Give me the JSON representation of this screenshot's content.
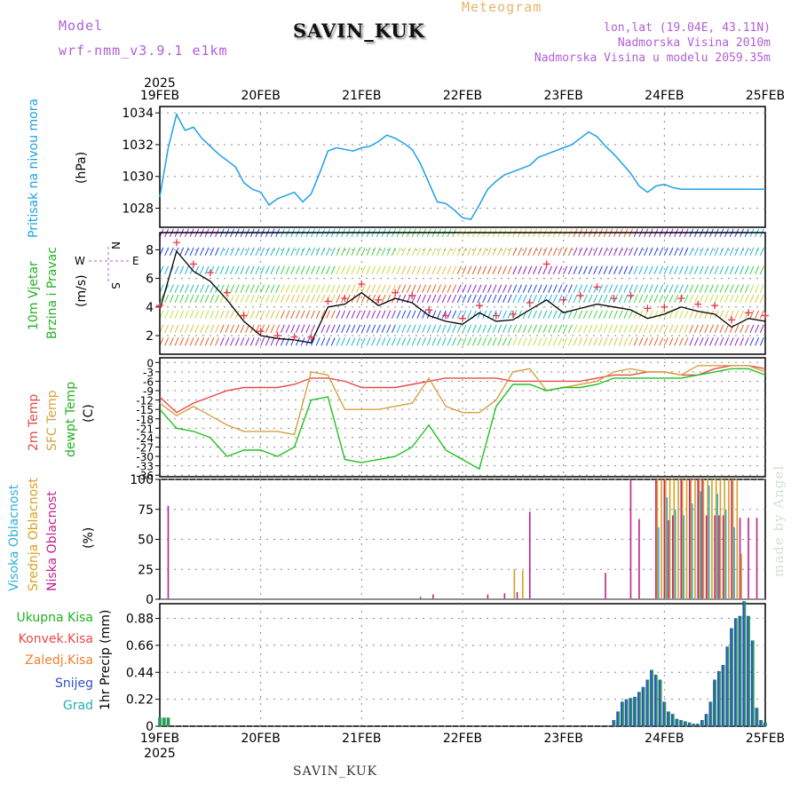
{
  "header": {
    "model_label": "Model",
    "model_name": "wrf-nmm_v3.9.1  e1km",
    "station": "SAVIN_KUK",
    "meteogram": "Meteogram",
    "lonlat": "lon,lat (19.04E, 43.11N)",
    "altitude": "Nadmorska Visina 2010m",
    "model_altitude": "Nadmorska Visina u modelu 2059.35m"
  },
  "footer": {
    "station": "SAVIN_KUK",
    "credit": "made by Angel"
  },
  "colors": {
    "pressure": "#1ea0e6",
    "wind_black": "#000000",
    "wind_red": "#e8364a",
    "temp2m": "#e84848",
    "sfc_temp": "#d8a040",
    "dewpt": "#22c022",
    "high_cloud": "#2fb0d8",
    "mid_cloud": "#d8a020",
    "low_cloud": "#c0208a",
    "precip_total": "#2a9a5a",
    "snow": "#3050c8",
    "grad": "#20b0b0"
  },
  "axis": {
    "year": "2025",
    "dates": [
      "19FEB",
      "20FEB",
      "21FEB",
      "22FEB",
      "23FEB",
      "24FEB",
      "25FEB"
    ]
  },
  "chart_data": [
    {
      "type": "line",
      "panel": "pressure",
      "ylabel_1": "Pritisak na nivou mora",
      "unit": "(hPa)",
      "ylim": [
        1026.8,
        1034.4
      ],
      "yticks": [
        "1028",
        "1030",
        "1032",
        "1034"
      ],
      "x_hours_from_19FEB": [
        0,
        2,
        4,
        6,
        8,
        10,
        12,
        14,
        16,
        18,
        20,
        22,
        24,
        26,
        28,
        30,
        32,
        34,
        36,
        38,
        40,
        42,
        44,
        46,
        48,
        50,
        52,
        54,
        56,
        58,
        60,
        62,
        64,
        66,
        68,
        70,
        72,
        74,
        76,
        78,
        80,
        82,
        84,
        86,
        88,
        90,
        92,
        94,
        96,
        98,
        100,
        102,
        104,
        106,
        108,
        110,
        112,
        114,
        116,
        118,
        120,
        122,
        124,
        126,
        128,
        130,
        132,
        134,
        136,
        138,
        140,
        142,
        144
      ],
      "series": [
        {
          "values": [
            1028.7,
            1031.8,
            1033.9,
            1032.9,
            1033.1,
            1032.4,
            1031.9,
            1031.4,
            1031.0,
            1030.6,
            1029.6,
            1029.2,
            1029.0,
            1028.2,
            1028.6,
            1028.8,
            1029.0,
            1028.4,
            1028.9,
            1030.2,
            1031.6,
            1031.8,
            1031.7,
            1031.6,
            1031.8,
            1031.9,
            1032.2,
            1032.6,
            1032.4,
            1032.1,
            1031.7,
            1030.8,
            1029.6,
            1028.4,
            1028.3,
            1027.9,
            1027.4,
            1027.3,
            1028.2,
            1029.2,
            1029.7,
            1030.1,
            1030.3,
            1030.5,
            1030.7,
            1031.2,
            1031.4,
            1031.6,
            1031.8,
            1032.0,
            1032.4,
            1032.8,
            1032.5,
            1031.9,
            1031.4,
            1030.8,
            1030.2,
            1029.4,
            1029.0,
            1029.4,
            1029.5,
            1029.3,
            1029.2,
            1029.2,
            1029.2,
            1029.2,
            1029.2,
            1029.2,
            1029.2,
            1029.2,
            1029.2,
            1029.2,
            1029.2
          ]
        }
      ]
    },
    {
      "type": "line",
      "panel": "wind",
      "ylabel_1": "10m Vjetar",
      "ylabel_2": "Brzina i Pravac",
      "unit": "(m/s)",
      "compass": {
        "north": "N",
        "west": "W",
        "east": "E",
        "south": "S"
      },
      "ylim": [
        0.7,
        9.2
      ],
      "yticks": [
        "2",
        "4",
        "6",
        "8"
      ],
      "x_hours_from_19FEB": [
        0,
        4,
        8,
        12,
        16,
        20,
        24,
        28,
        32,
        36,
        40,
        44,
        48,
        52,
        56,
        60,
        64,
        68,
        72,
        76,
        80,
        84,
        88,
        92,
        96,
        100,
        104,
        108,
        112,
        116,
        120,
        124,
        128,
        132,
        136,
        140,
        144
      ],
      "series": [
        {
          "name": "speed",
          "values": [
            3.8,
            7.9,
            6.5,
            5.8,
            4.5,
            3.0,
            2.0,
            1.8,
            1.7,
            1.5,
            4.0,
            4.2,
            5.0,
            4.1,
            4.6,
            4.3,
            3.4,
            3.0,
            2.8,
            3.6,
            3.0,
            3.1,
            3.8,
            4.5,
            3.6,
            3.9,
            4.2,
            4.0,
            3.8,
            3.2,
            3.5,
            4.0,
            3.7,
            3.5,
            2.6,
            3.2,
            3.0
          ]
        },
        {
          "name": "gust",
          "values": [
            4.1,
            8.5,
            7.0,
            6.4,
            5.0,
            3.4,
            2.3,
            2.0,
            1.9,
            1.9,
            4.4,
            4.6,
            5.6,
            4.5,
            5.0,
            4.8,
            3.8,
            3.4,
            3.2,
            4.1,
            3.4,
            3.5,
            4.3,
            7.0,
            4.5,
            4.8,
            5.4,
            4.6,
            4.8,
            3.9,
            4.0,
            4.6,
            4.2,
            4.1,
            3.1,
            3.6,
            3.4
          ]
        }
      ]
    },
    {
      "type": "line",
      "panel": "temperature",
      "ylabel_1": "2m Temp",
      "ylabel_2": "SFC Temp",
      "ylabel_3": "dewpt Temp",
      "unit": "(C)",
      "ylim": [
        -36.5,
        1.5
      ],
      "yticks": [
        "0",
        "-3",
        "-6",
        "-9",
        "-12",
        "-15",
        "-18",
        "-21",
        "-24",
        "-27",
        "-30",
        "-33",
        "-36"
      ],
      "x_hours_from_19FEB": [
        0,
        4,
        8,
        12,
        16,
        20,
        24,
        28,
        32,
        36,
        40,
        44,
        48,
        52,
        56,
        60,
        64,
        68,
        72,
        76,
        80,
        84,
        88,
        92,
        96,
        100,
        104,
        108,
        112,
        116,
        120,
        124,
        128,
        132,
        136,
        140,
        144
      ],
      "series": [
        {
          "name": "2m Temp",
          "values": [
            -11,
            -16,
            -13,
            -11,
            -9,
            -8,
            -8,
            -8,
            -7,
            -5,
            -5,
            -6,
            -8,
            -8,
            -8,
            -7,
            -6,
            -5,
            -5,
            -5,
            -5,
            -6,
            -6,
            -6,
            -6,
            -6,
            -5,
            -4,
            -4,
            -3,
            -3,
            -4,
            -4,
            -2,
            -1,
            -1,
            -2
          ]
        },
        {
          "name": "SFC Temp",
          "values": [
            -13,
            -17,
            -14,
            -17,
            -20,
            -22,
            -22,
            -22,
            -23,
            -3,
            -4,
            -15,
            -15,
            -15,
            -14,
            -13,
            -5,
            -14,
            -16,
            -16,
            -12,
            -3,
            -2,
            -9,
            -8,
            -7,
            -6,
            -3,
            -2,
            -3,
            -3,
            -4,
            -1,
            -1,
            -1,
            -1,
            -3
          ]
        },
        {
          "name": "dewpt Temp",
          "values": [
            -15,
            -21,
            -22,
            -24,
            -30,
            -28,
            -28,
            -30,
            -27,
            -12,
            -11,
            -31,
            -32,
            -31,
            -30,
            -27,
            -20,
            -28,
            -31,
            -34,
            -14,
            -7,
            -7,
            -9,
            -8,
            -8,
            -7,
            -5,
            -5,
            -5,
            -5,
            -5,
            -4,
            -3,
            -2,
            -2,
            -4
          ]
        }
      ]
    },
    {
      "type": "bar",
      "panel": "clouds",
      "ylabel_1": "Visoka Oblacnost",
      "ylabel_2": "Srednja Oblacnost",
      "ylabel_3": "Niska Oblacnost",
      "unit": "(%)",
      "ylim": [
        0,
        100
      ],
      "yticks": [
        "0",
        "25",
        "50",
        "75",
        "100"
      ],
      "series": [
        {
          "name": "Niska Oblacnost",
          "x_hours": [
            2,
            62,
            65,
            78,
            82,
            85,
            88,
            106,
            112,
            114,
            118,
            120,
            121,
            122,
            124,
            126,
            128,
            129,
            130,
            132,
            133,
            134,
            136,
            138,
            140,
            142
          ],
          "values": [
            78,
            2,
            4,
            4,
            5,
            6,
            73,
            22,
            100,
            67,
            100,
            100,
            66,
            70,
            100,
            100,
            100,
            100,
            70,
            70,
            70,
            70,
            100,
            68,
            68,
            68
          ]
        },
        {
          "name": "Srednja Oblacnost",
          "x_hours": [
            84,
            86,
            118,
            119,
            120,
            121,
            122,
            123,
            124,
            125,
            126,
            127,
            128,
            129,
            130,
            131,
            132,
            133,
            134,
            135,
            136,
            137,
            138
          ],
          "values": [
            25,
            24,
            100,
            100,
            100,
            100,
            100,
            100,
            100,
            100,
            100,
            100,
            100,
            100,
            100,
            100,
            100,
            100,
            100,
            100,
            100,
            100,
            38
          ]
        },
        {
          "name": "Visoka Oblacnost",
          "x_hours": [
            118,
            120,
            122,
            124,
            126,
            128,
            130,
            132,
            134,
            136
          ],
          "values": [
            60,
            85,
            75,
            70,
            80,
            90,
            95,
            88,
            75,
            60
          ]
        }
      ]
    },
    {
      "type": "bar",
      "panel": "precip",
      "ylabel": "1hr Precip (mm)",
      "ylim": [
        0,
        1.0
      ],
      "yticks": [
        "0",
        "0.22",
        "0.44",
        "0.66",
        "0.88"
      ],
      "legend": [
        "Ukupna Kisa",
        "Konvek.Kisa",
        "Zaledj.Kisa",
        "Snijeg",
        "Grad"
      ],
      "x_hours_from_19FEB": [
        0,
        1,
        2,
        108,
        109,
        110,
        111,
        112,
        113,
        114,
        115,
        116,
        117,
        118,
        119,
        120,
        121,
        122,
        123,
        124,
        125,
        126,
        127,
        128,
        129,
        130,
        131,
        132,
        133,
        134,
        135,
        136,
        137,
        138,
        139,
        140,
        141,
        142,
        143,
        144
      ],
      "series": [
        {
          "name": "Ukupna Kisa",
          "values": [
            0.07,
            0.07,
            0.07,
            0.05,
            0.12,
            0.2,
            0.22,
            0.23,
            0.24,
            0.28,
            0.32,
            0.38,
            0.46,
            0.42,
            0.38,
            0.2,
            0.12,
            0.1,
            0.06,
            0.05,
            0.04,
            0.03,
            0.02,
            0.02,
            0.05,
            0.1,
            0.2,
            0.38,
            0.45,
            0.5,
            0.65,
            0.8,
            0.88,
            0.9,
            1.02,
            0.9,
            0.7,
            0.15,
            0.05,
            0.03
          ]
        }
      ]
    }
  ]
}
